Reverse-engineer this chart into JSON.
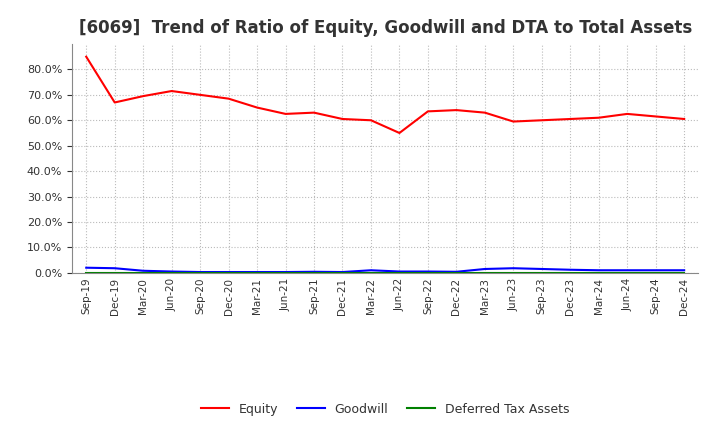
{
  "title": "[6069]  Trend of Ratio of Equity, Goodwill and DTA to Total Assets",
  "x_labels": [
    "Sep-19",
    "Dec-19",
    "Mar-20",
    "Jun-20",
    "Sep-20",
    "Dec-20",
    "Mar-21",
    "Jun-21",
    "Sep-21",
    "Dec-21",
    "Mar-22",
    "Jun-22",
    "Sep-22",
    "Dec-22",
    "Mar-23",
    "Jun-23",
    "Sep-23",
    "Dec-23",
    "Mar-24",
    "Jun-24",
    "Sep-24",
    "Dec-24"
  ],
  "equity": [
    85.0,
    67.0,
    69.5,
    71.5,
    70.0,
    68.5,
    65.0,
    62.5,
    63.0,
    60.5,
    60.0,
    55.0,
    63.5,
    64.0,
    63.0,
    59.5,
    60.0,
    60.5,
    61.0,
    62.5,
    61.5,
    60.5
  ],
  "goodwill": [
    2.0,
    1.8,
    0.8,
    0.5,
    0.3,
    0.3,
    0.3,
    0.3,
    0.4,
    0.3,
    1.0,
    0.5,
    0.5,
    0.4,
    1.5,
    1.8,
    1.5,
    1.2,
    1.0,
    1.0,
    1.0,
    1.0
  ],
  "dta": [
    0.05,
    0.05,
    0.05,
    0.05,
    0.05,
    0.05,
    0.05,
    0.05,
    0.05,
    0.05,
    0.05,
    0.05,
    0.05,
    0.05,
    0.05,
    0.05,
    0.05,
    0.05,
    0.05,
    0.05,
    0.05,
    0.05
  ],
  "equity_color": "#ff0000",
  "goodwill_color": "#0000ff",
  "dta_color": "#008000",
  "ylim": [
    0.0,
    90.0
  ],
  "yticks": [
    0.0,
    10.0,
    20.0,
    30.0,
    40.0,
    50.0,
    60.0,
    70.0,
    80.0
  ],
  "background_color": "#ffffff",
  "grid_color": "#bbbbbb",
  "title_fontsize": 12,
  "legend_labels": [
    "Equity",
    "Goodwill",
    "Deferred Tax Assets"
  ]
}
